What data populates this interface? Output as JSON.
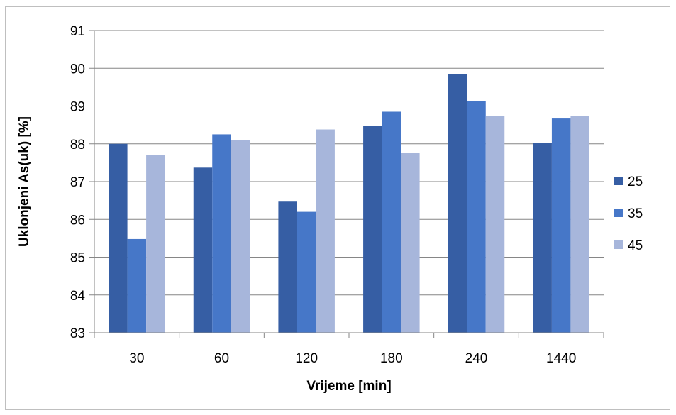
{
  "chart_data": {
    "type": "bar",
    "title": "",
    "xlabel": "Vrijeme [min]",
    "ylabel": "Uklonjeni As(uk) [%]",
    "categories": [
      "30",
      "60",
      "120",
      "180",
      "240",
      "1440"
    ],
    "series": [
      {
        "name": "25",
        "color": "#365ea4",
        "values": [
          88.0,
          87.37,
          86.47,
          88.47,
          89.85,
          88.02
        ]
      },
      {
        "name": "35",
        "color": "#4677c8",
        "values": [
          85.48,
          88.25,
          86.2,
          88.85,
          89.13,
          88.67
        ]
      },
      {
        "name": "45",
        "color": "#a7b6db",
        "values": [
          87.7,
          88.1,
          88.38,
          87.77,
          88.73,
          88.74
        ]
      }
    ],
    "ylim": [
      83,
      91
    ],
    "yticks": [
      "83",
      "84",
      "85",
      "86",
      "87",
      "88",
      "89",
      "90",
      "91"
    ],
    "grid": true,
    "legend_position": "right"
  }
}
